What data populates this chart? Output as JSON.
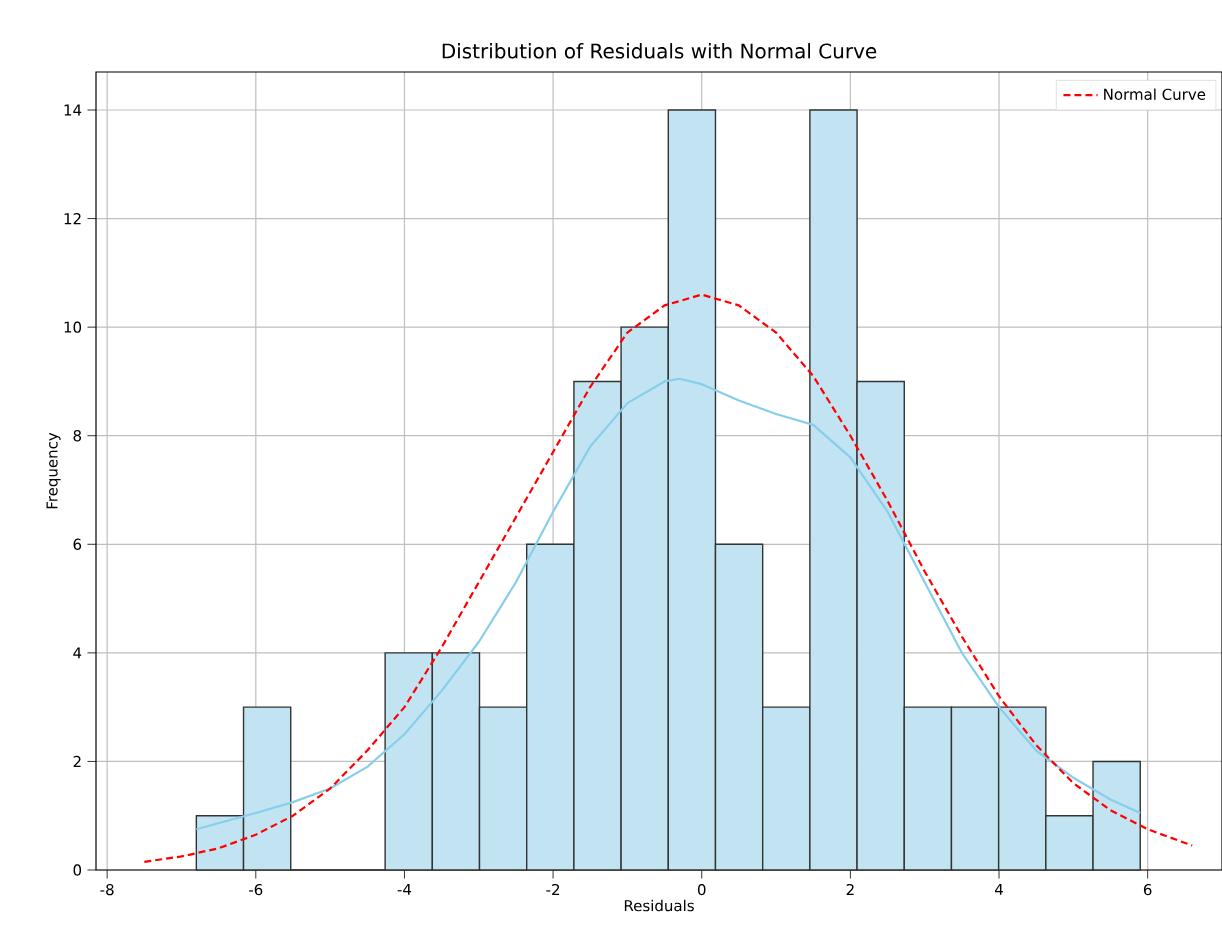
{
  "chart_data": {
    "type": "histogram",
    "title": "Distribution of Residuals with Normal Curve",
    "xlabel": "Residuals",
    "ylabel": "Frequency",
    "bins": [
      -6.8,
      -6.165,
      -5.53,
      -4.895,
      -4.26,
      -3.625,
      -2.99,
      -2.355,
      -1.72,
      -1.085,
      -0.45,
      0.185,
      0.82,
      1.455,
      2.09,
      2.725,
      3.36,
      3.995,
      4.63,
      5.265,
      5.9
    ],
    "values": [
      1,
      3,
      0,
      0,
      4,
      4,
      3,
      6,
      9,
      10,
      14,
      6,
      3,
      14,
      9,
      3,
      3,
      3,
      1,
      2
    ],
    "color": "#c2e4f2",
    "series": [
      {
        "type": "line",
        "color": "#87ceeb",
        "line_style": "solid",
        "x": [
          -6.8,
          -6,
          -5.5,
          -5,
          -4.5,
          -4,
          -3.5,
          -3,
          -2.5,
          -2,
          -1.5,
          -1,
          -0.5,
          -0.3,
          0,
          0.5,
          1,
          1.5,
          2,
          2.5,
          3,
          3.5,
          4,
          4.5,
          5,
          5.5,
          5.9
        ],
        "values": [
          0.75,
          1.05,
          1.25,
          1.5,
          1.9,
          2.5,
          3.3,
          4.2,
          5.3,
          6.6,
          7.8,
          8.6,
          9.0,
          9.05,
          8.95,
          8.65,
          8.4,
          8.2,
          7.6,
          6.6,
          5.3,
          4.0,
          3.0,
          2.2,
          1.7,
          1.3,
          1.05
        ]
      },
      {
        "type": "line",
        "name": "Normal Curve",
        "color": "#ff0000",
        "line_style": "dashed",
        "x": [
          -7.5,
          -7,
          -6.5,
          -6,
          -5.5,
          -5,
          -4.5,
          -4,
          -3.5,
          -3,
          -2.5,
          -2,
          -1.5,
          -1,
          -0.5,
          0,
          0.5,
          1,
          1.5,
          2,
          2.5,
          3,
          3.5,
          4,
          4.5,
          5,
          5.5,
          6,
          6.6
        ],
        "values": [
          0.15,
          0.25,
          0.4,
          0.65,
          1.0,
          1.5,
          2.2,
          3.0,
          4.1,
          5.3,
          6.5,
          7.7,
          8.9,
          9.9,
          10.4,
          10.6,
          10.4,
          9.9,
          9.1,
          8.0,
          6.8,
          5.5,
          4.3,
          3.2,
          2.3,
          1.6,
          1.1,
          0.75,
          0.45
        ]
      }
    ],
    "xlim": [
      -8.15,
      7.0
    ],
    "ylim": [
      0,
      14.7
    ],
    "xticks": [
      -8,
      -6,
      -4,
      -2,
      0,
      2,
      4,
      6
    ],
    "yticks": [
      0,
      2,
      4,
      6,
      8,
      10,
      12,
      14
    ],
    "grid": true,
    "legend": "top right"
  }
}
